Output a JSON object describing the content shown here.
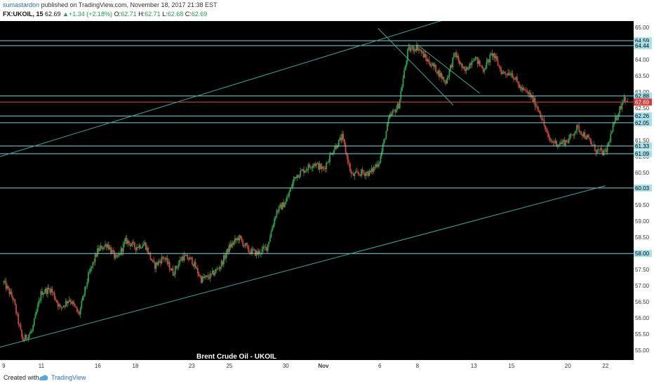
{
  "header": {
    "author": "sumastardon",
    "published_text": " published on TradingView.com, November 18, 2017 21:38 EST",
    "symbol": "FX:UKOIL, 15",
    "last": "62.69",
    "change": "+1.34 (+2.18%)",
    "o_label": "O:",
    "o_value": "62.71",
    "h_label": "H:",
    "h_value": "62.71",
    "l_label": "L:",
    "l_value": "62.68",
    "c_label": "C:",
    "c_value": "62.69"
  },
  "footer": {
    "created_with": "Created with",
    "brand": "TradingView"
  },
  "colors": {
    "background": "#000000",
    "candle_up": "#2e9e4f",
    "candle_down": "#c94640",
    "hline": "#7fd3de",
    "trendline": "#3aa89a",
    "current_price": "#d9383a",
    "label_bg": "#a9e1ea"
  },
  "chart_data": {
    "type": "candlestick",
    "watermark": "Brent Crude Oil - UKOIL",
    "ylim": [
      54.7,
      65.2
    ],
    "y_ticks": [
      "55.00",
      "55.50",
      "56.00",
      "56.50",
      "57.00",
      "57.50",
      "58.00",
      "58.50",
      "59.00",
      "59.50",
      "60.00",
      "60.50",
      "61.00",
      "61.50",
      "62.00",
      "62.50",
      "63.00",
      "63.50",
      "64.00",
      "64.50",
      "65.00"
    ],
    "x_ticks": [
      {
        "label": "9",
        "day": 0
      },
      {
        "label": "11",
        "day": 2
      },
      {
        "label": "16",
        "day": 5
      },
      {
        "label": "18",
        "day": 7
      },
      {
        "label": "23",
        "day": 10
      },
      {
        "label": "25",
        "day": 12
      },
      {
        "label": "30",
        "day": 15
      },
      {
        "label": "Nov",
        "day": 17
      },
      {
        "label": "6",
        "day": 20
      },
      {
        "label": "8",
        "day": 22
      },
      {
        "label": "13",
        "day": 25
      },
      {
        "label": "15",
        "day": 27
      },
      {
        "label": "20",
        "day": 30
      },
      {
        "label": "22",
        "day": 32
      }
    ],
    "x_range_days": [
      -0.2,
      33.5
    ],
    "horizontal_levels": [
      "64.59",
      "64.44",
      "62.88",
      "62.26",
      "62.05",
      "61.33",
      "61.09",
      "60.03",
      "58.00"
    ],
    "current_price": "62.69",
    "trendlines": [
      {
        "from": [
          -0.2,
          61.0
        ],
        "to": [
          26.0,
          65.7
        ]
      },
      {
        "from": [
          -0.2,
          55.1
        ],
        "to": [
          32.0,
          60.1
        ]
      },
      {
        "from": [
          19.9,
          64.98
        ],
        "to": [
          23.9,
          62.6
        ]
      },
      {
        "from": [
          22.1,
          64.42
        ],
        "to": [
          25.3,
          62.97
        ]
      }
    ],
    "price_path": [
      [
        0,
        57.1
      ],
      [
        0.5,
        56.6
      ],
      [
        1,
        55.3
      ],
      [
        1.5,
        55.6
      ],
      [
        2,
        56.8
      ],
      [
        2.5,
        56.9
      ],
      [
        3,
        56.3
      ],
      [
        3.5,
        56.6
      ],
      [
        4,
        56.1
      ],
      [
        4.5,
        57.3
      ],
      [
        5,
        58.1
      ],
      [
        5.5,
        58.3
      ],
      [
        6,
        57.8
      ],
      [
        6.5,
        58.4
      ],
      [
        7,
        58.2
      ],
      [
        7.5,
        58.3
      ],
      [
        8,
        57.6
      ],
      [
        8.5,
        57.9
      ],
      [
        9,
        57.4
      ],
      [
        9.5,
        57.9
      ],
      [
        10,
        57.8
      ],
      [
        10.5,
        57.2
      ],
      [
        11,
        57.3
      ],
      [
        11.5,
        57.6
      ],
      [
        12,
        58.2
      ],
      [
        12.5,
        58.5
      ],
      [
        13,
        58.1
      ],
      [
        13.5,
        58.0
      ],
      [
        14,
        58.2
      ],
      [
        14.5,
        59.3
      ],
      [
        15,
        59.6
      ],
      [
        15.5,
        60.4
      ],
      [
        16,
        60.6
      ],
      [
        16.5,
        60.8
      ],
      [
        17,
        60.6
      ],
      [
        17.5,
        61.2
      ],
      [
        18,
        61.6
      ],
      [
        18.5,
        60.4
      ],
      [
        19,
        60.5
      ],
      [
        19.5,
        60.5
      ],
      [
        20,
        60.9
      ],
      [
        20.5,
        62.2
      ],
      [
        21,
        62.6
      ],
      [
        21.5,
        64.3
      ],
      [
        22,
        64.4
      ],
      [
        22.5,
        64.0
      ],
      [
        23,
        63.7
      ],
      [
        23.5,
        63.3
      ],
      [
        24,
        64.2
      ],
      [
        24.5,
        63.6
      ],
      [
        25,
        64.1
      ],
      [
        25.5,
        63.7
      ],
      [
        26,
        64.2
      ],
      [
        26.5,
        63.6
      ],
      [
        27,
        63.6
      ],
      [
        27.5,
        63.1
      ],
      [
        28,
        62.9
      ],
      [
        28.5,
        62.4
      ],
      [
        29,
        61.5
      ],
      [
        29.5,
        61.4
      ],
      [
        30,
        61.5
      ],
      [
        30.5,
        61.9
      ],
      [
        31,
        61.6
      ],
      [
        31.5,
        61.2
      ],
      [
        32,
        61.1
      ],
      [
        32.5,
        62.1
      ],
      [
        33,
        62.85
      ],
      [
        33.2,
        62.69
      ]
    ]
  }
}
